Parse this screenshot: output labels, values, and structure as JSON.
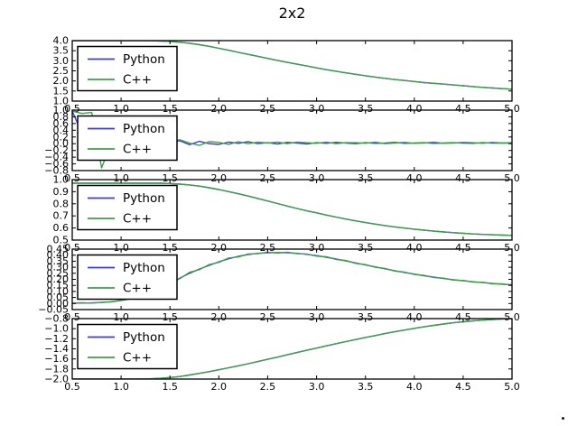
{
  "title": "2x2",
  "colors": {
    "python": "#3d3dd4",
    "cpp": "#3f9e49",
    "axis": "#000000",
    "background": "#ffffff"
  },
  "legend": {
    "position": "upper left",
    "entries": [
      {
        "label": "Python",
        "series": "python"
      },
      {
        "label": "C++",
        "series": "cpp"
      }
    ]
  },
  "shared_x": [
    0.5,
    0.6,
    0.7,
    0.8,
    0.9,
    1.0,
    1.1,
    1.2,
    1.3,
    1.4,
    1.5,
    1.6,
    1.7,
    1.8,
    1.9,
    2.0,
    2.1,
    2.2,
    2.3,
    2.4,
    2.5,
    2.6,
    2.7,
    2.8,
    2.9,
    3.0,
    3.1,
    3.2,
    3.3,
    3.4,
    3.5,
    3.6,
    3.7,
    3.8,
    3.9,
    4.0,
    4.1,
    4.2,
    4.3,
    4.4,
    4.5,
    4.6,
    4.7,
    4.8,
    4.9,
    5.0
  ],
  "shared_xticks": [
    0.5,
    1.0,
    1.5,
    2.0,
    2.5,
    3.0,
    3.5,
    4.0,
    4.5,
    5.0
  ],
  "shared_xtick_labels": [
    "0.5",
    "1.0",
    "1.5",
    "2.0",
    "2.5",
    "3.0",
    "3.5",
    "4.0",
    "4.5",
    "5.0"
  ],
  "chart_data": [
    {
      "type": "line",
      "xlim": [
        0.5,
        5.0
      ],
      "ylim": [
        1.0,
        4.0
      ],
      "yticks": [
        4.0,
        3.5,
        3.0,
        2.5,
        2.0,
        1.5,
        1.0
      ],
      "ytick_labels": [
        "4.0",
        "3.5",
        "3.0",
        "2.5",
        "2.0",
        "1.5",
        "1.0"
      ],
      "series": [
        {
          "name": "Python",
          "color_key": "python",
          "values": [
            4.0,
            4.0,
            4.0,
            4.0,
            4.0,
            4.0,
            4.0,
            4.0,
            3.99,
            3.98,
            3.96,
            3.92,
            3.87,
            3.8,
            3.72,
            3.62,
            3.52,
            3.42,
            3.32,
            3.22,
            3.12,
            3.02,
            2.92,
            2.83,
            2.74,
            2.65,
            2.56,
            2.48,
            2.4,
            2.33,
            2.26,
            2.19,
            2.13,
            2.07,
            2.02,
            1.97,
            1.92,
            1.88,
            1.84,
            1.8,
            1.76,
            1.72,
            1.68,
            1.65,
            1.62,
            1.59
          ]
        },
        {
          "name": "C++",
          "color_key": "cpp",
          "values": [
            4.0,
            4.0,
            4.0,
            4.0,
            4.0,
            4.0,
            4.0,
            4.0,
            3.99,
            3.98,
            3.96,
            3.92,
            3.87,
            3.8,
            3.72,
            3.62,
            3.52,
            3.42,
            3.32,
            3.22,
            3.12,
            3.02,
            2.92,
            2.83,
            2.74,
            2.65,
            2.56,
            2.48,
            2.4,
            2.33,
            2.26,
            2.19,
            2.13,
            2.07,
            2.02,
            1.97,
            1.92,
            1.88,
            1.84,
            1.8,
            1.76,
            1.72,
            1.68,
            1.65,
            1.62,
            1.59
          ]
        }
      ]
    },
    {
      "type": "line",
      "xlim": [
        0.5,
        5.0
      ],
      "ylim": [
        -0.8,
        1.0
      ],
      "yticks": [
        1.0,
        0.8,
        0.6,
        0.4,
        0.2,
        0.0,
        -0.2,
        -0.4,
        -0.6,
        -0.8
      ],
      "ytick_labels": [
        "1.0",
        "0.8",
        "0.6",
        "0.4",
        "0.2",
        "0.0",
        "−0.2",
        "−0.4",
        "−0.6",
        "−0.8"
      ],
      "series": [
        {
          "name": "Python",
          "color_key": "python",
          "values": [
            0.97,
            0.3,
            -0.12,
            -0.06,
            0.02,
            0.05,
            0.01,
            0.03,
            0.0,
            0.02,
            0.05,
            0.09,
            -0.03,
            0.07,
            0.0,
            -0.02,
            0.05,
            0.01,
            0.06,
            0.0,
            0.03,
            -0.01,
            0.04,
            0.02,
            -0.01,
            0.03,
            0.01,
            0.04,
            0.02,
            0.0,
            0.03,
            0.01,
            0.02,
            0.04,
            0.01,
            0.02,
            0.03,
            0.01,
            0.02,
            0.03,
            0.02,
            0.01,
            0.03,
            0.02,
            0.02,
            0.02
          ]
        },
        {
          "name": "C++",
          "color_key": "cpp",
          "values": [
            0.97,
            0.9,
            0.93,
            -0.72,
            0.04,
            0.0,
            0.02,
            0.01,
            0.02,
            0.04,
            0.06,
            0.12,
            0.02,
            -0.05,
            0.06,
            0.04,
            -0.02,
            0.06,
            0.0,
            0.05,
            0.02,
            0.05,
            0.0,
            0.05,
            0.03,
            0.01,
            0.05,
            0.0,
            0.03,
            0.03,
            0.01,
            0.05,
            0.0,
            0.02,
            0.04,
            0.01,
            0.02,
            0.05,
            0.01,
            0.02,
            0.04,
            0.03,
            0.01,
            0.04,
            0.02,
            0.03
          ]
        }
      ]
    },
    {
      "type": "line",
      "xlim": [
        0.5,
        5.0
      ],
      "ylim": [
        0.5,
        1.0
      ],
      "yticks": [
        1.0,
        0.9,
        0.8,
        0.7,
        0.6,
        0.5
      ],
      "ytick_labels": [
        "1.0",
        "0.9",
        "0.8",
        "0.7",
        "0.6",
        "0.5"
      ],
      "series": [
        {
          "name": "Python",
          "color_key": "python",
          "values": [
            0.97,
            0.97,
            0.97,
            0.97,
            0.97,
            0.97,
            0.97,
            0.97,
            0.97,
            0.97,
            0.968,
            0.963,
            0.956,
            0.946,
            0.933,
            0.918,
            0.901,
            0.883,
            0.864,
            0.844,
            0.823,
            0.802,
            0.781,
            0.761,
            0.742,
            0.725,
            0.707,
            0.69,
            0.674,
            0.659,
            0.645,
            0.632,
            0.62,
            0.609,
            0.599,
            0.59,
            0.582,
            0.574,
            0.567,
            0.561,
            0.556,
            0.551,
            0.547,
            0.544,
            0.541,
            0.539
          ]
        },
        {
          "name": "C++",
          "color_key": "cpp",
          "values": [
            0.97,
            0.97,
            0.97,
            0.97,
            0.97,
            0.97,
            0.97,
            0.97,
            0.97,
            0.97,
            0.968,
            0.963,
            0.956,
            0.946,
            0.933,
            0.918,
            0.901,
            0.883,
            0.864,
            0.844,
            0.823,
            0.802,
            0.781,
            0.761,
            0.742,
            0.725,
            0.707,
            0.69,
            0.674,
            0.659,
            0.645,
            0.632,
            0.62,
            0.609,
            0.599,
            0.59,
            0.582,
            0.574,
            0.567,
            0.561,
            0.556,
            0.551,
            0.547,
            0.544,
            0.541,
            0.539
          ]
        }
      ]
    },
    {
      "type": "line",
      "xlim": [
        0.5,
        5.0
      ],
      "ylim": [
        -0.05,
        0.45
      ],
      "yticks": [
        0.45,
        0.4,
        0.35,
        0.3,
        0.25,
        0.2,
        0.15,
        0.1,
        0.05,
        0.0,
        -0.05
      ],
      "ytick_labels": [
        "0.45",
        "0.40",
        "0.35",
        "0.30",
        "0.25",
        "0.20",
        "0.15",
        "0.10",
        "0.05",
        "0.00",
        "−0.05"
      ],
      "series": [
        {
          "name": "Python",
          "color_key": "python",
          "values": [
            0.003,
            0.004,
            0.005,
            0.008,
            0.015,
            0.025,
            0.04,
            0.06,
            0.09,
            0.125,
            0.165,
            0.21,
            0.25,
            0.285,
            0.315,
            0.345,
            0.37,
            0.39,
            0.405,
            0.415,
            0.42,
            0.422,
            0.42,
            0.415,
            0.407,
            0.396,
            0.383,
            0.368,
            0.352,
            0.336,
            0.319,
            0.303,
            0.287,
            0.272,
            0.257,
            0.243,
            0.23,
            0.218,
            0.207,
            0.197,
            0.188,
            0.18,
            0.173,
            0.166,
            0.16,
            0.155
          ]
        },
        {
          "name": "C++",
          "color_key": "cpp",
          "values": [
            0.004,
            0.006,
            0.004,
            0.01,
            0.013,
            0.028,
            0.038,
            0.063,
            0.093,
            0.122,
            0.17,
            0.205,
            0.258,
            0.28,
            0.322,
            0.34,
            0.376,
            0.385,
            0.41,
            0.412,
            0.425,
            0.418,
            0.425,
            0.412,
            0.41,
            0.392,
            0.387,
            0.364,
            0.356,
            0.332,
            0.322,
            0.3,
            0.29,
            0.269,
            0.26,
            0.24,
            0.233,
            0.215,
            0.21,
            0.194,
            0.191,
            0.177,
            0.176,
            0.163,
            0.163,
            0.152
          ]
        }
      ]
    },
    {
      "type": "line",
      "xlim": [
        0.5,
        5.0
      ],
      "ylim": [
        -2.0,
        -0.8
      ],
      "yticks": [
        -0.8,
        -1.0,
        -1.2,
        -1.4,
        -1.6,
        -1.8,
        -2.0
      ],
      "ytick_labels": [
        "−0.8",
        "−1.0",
        "−1.2",
        "−1.4",
        "−1.6",
        "−1.8",
        "−2.0"
      ],
      "series": [
        {
          "name": "Python",
          "color_key": "python",
          "values": [
            -2.0,
            -2.0,
            -2.0,
            -2.0,
            -2.0,
            -2.0,
            -2.0,
            -2.0,
            -1.995,
            -1.985,
            -1.97,
            -1.95,
            -1.92,
            -1.888,
            -1.853,
            -1.816,
            -1.777,
            -1.737,
            -1.695,
            -1.652,
            -1.608,
            -1.564,
            -1.519,
            -1.474,
            -1.429,
            -1.385,
            -1.341,
            -1.298,
            -1.256,
            -1.215,
            -1.175,
            -1.136,
            -1.098,
            -1.062,
            -1.027,
            -0.994,
            -0.963,
            -0.934,
            -0.907,
            -0.882,
            -0.865,
            -0.845,
            -0.83,
            -0.818,
            -0.808,
            -0.8
          ]
        },
        {
          "name": "C++",
          "color_key": "cpp",
          "values": [
            -2.0,
            -2.0,
            -2.0,
            -2.0,
            -2.0,
            -2.0,
            -2.0,
            -2.0,
            -1.995,
            -1.985,
            -1.97,
            -1.95,
            -1.92,
            -1.888,
            -1.853,
            -1.816,
            -1.777,
            -1.737,
            -1.695,
            -1.652,
            -1.608,
            -1.564,
            -1.519,
            -1.474,
            -1.429,
            -1.385,
            -1.341,
            -1.298,
            -1.256,
            -1.215,
            -1.175,
            -1.136,
            -1.098,
            -1.062,
            -1.027,
            -0.994,
            -0.963,
            -0.934,
            -0.907,
            -0.882,
            -0.865,
            -0.845,
            -0.83,
            -0.818,
            -0.808,
            -0.8
          ]
        }
      ]
    }
  ]
}
